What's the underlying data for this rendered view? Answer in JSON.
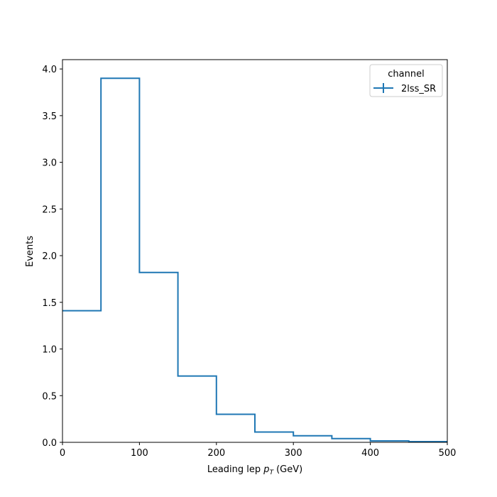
{
  "chart_data": {
    "type": "histogram-step",
    "title": "",
    "xlabel": "Leading lep",
    "xlabel_math_symbol": "p",
    "xlabel_math_subscript": "T",
    "xlabel_unit": "(GeV)",
    "ylabel": "Events",
    "xlim": [
      0,
      500
    ],
    "ylim": [
      0,
      4.1
    ],
    "xticks": [
      0,
      100,
      200,
      300,
      400,
      500
    ],
    "xtick_labels": [
      "0",
      "100",
      "200",
      "300",
      "400",
      "500"
    ],
    "yticks": [
      0.0,
      0.5,
      1.0,
      1.5,
      2.0,
      2.5,
      3.0,
      3.5,
      4.0
    ],
    "ytick_labels": [
      "0.0",
      "0.5",
      "1.0",
      "1.5",
      "2.0",
      "2.5",
      "3.0",
      "3.5",
      "4.0"
    ],
    "grid": false,
    "legend": {
      "title": "channel",
      "placement": "upper right"
    },
    "bin_edges": [
      0,
      50,
      100,
      150,
      200,
      250,
      300,
      350,
      400,
      450,
      500
    ],
    "series": [
      {
        "name": "2lss_SR",
        "color": "#1f77b4",
        "values": [
          1.41,
          3.9,
          1.82,
          0.71,
          0.3,
          0.11,
          0.07,
          0.04,
          0.015,
          0.008
        ]
      }
    ]
  }
}
